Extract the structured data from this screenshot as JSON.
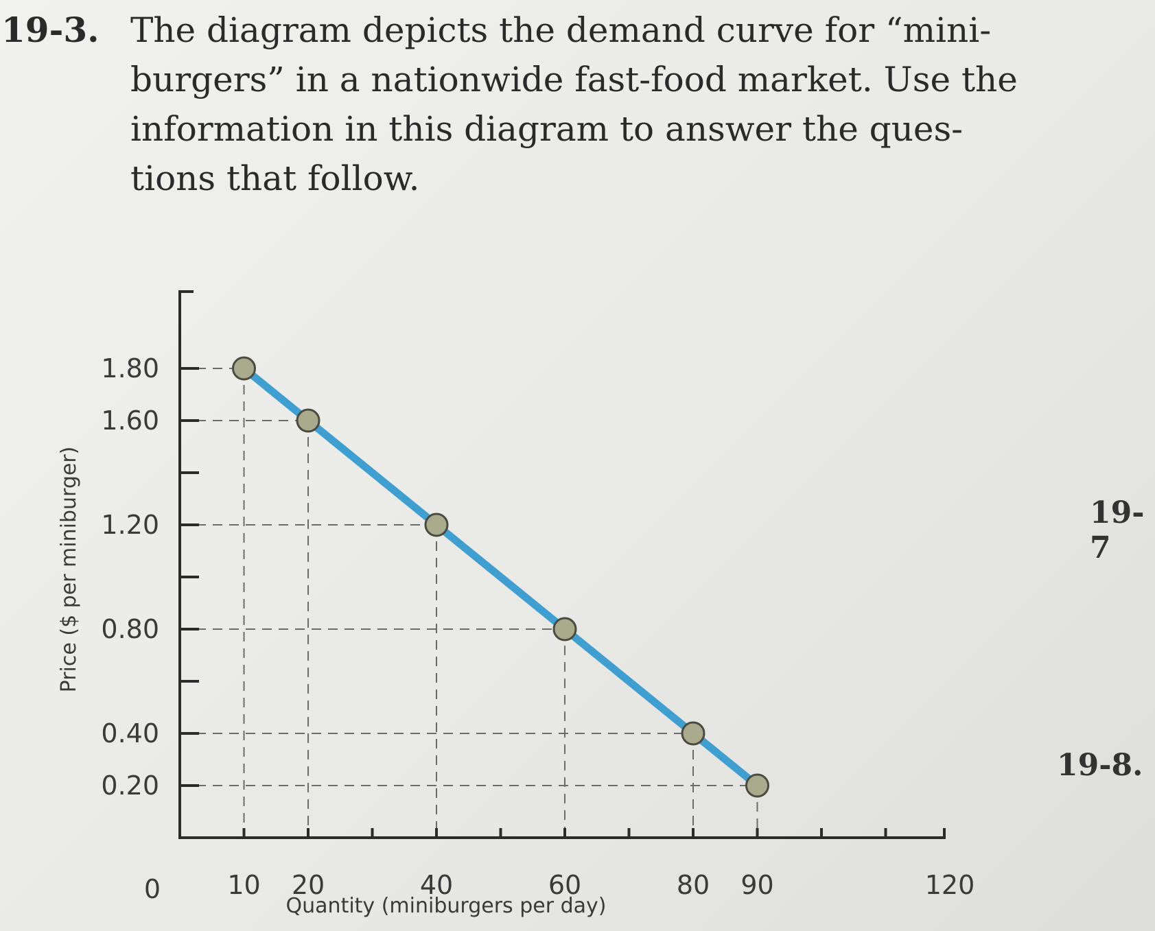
{
  "problem": {
    "number": "19-3.",
    "lines": [
      "The diagram depicts the demand curve for “mini-",
      "burgers” in a nationwide fast-food market. Use the",
      "information in this diagram to answer the ques-",
      "tions that follow."
    ]
  },
  "side_labels": [
    "19-7",
    "19-8."
  ],
  "chart_data": {
    "type": "line",
    "title": "",
    "xlabel": "Quantity (miniburgers per day)",
    "ylabel": "Price ($ per miniburger)",
    "origin_label": "0",
    "x_tick_labels": [
      "10",
      "20",
      "40",
      "60",
      "80",
      "90",
      "120"
    ],
    "y_tick_labels": [
      "0.20",
      "0.40",
      "0.80",
      "1.20",
      "1.60",
      "1.80"
    ],
    "xlim": [
      0,
      120
    ],
    "ylim": [
      0,
      2.0
    ],
    "series": [
      {
        "x": [
          10,
          20,
          40,
          60,
          80,
          90
        ],
        "y": [
          1.8,
          1.6,
          1.2,
          0.8,
          0.4,
          0.2
        ]
      }
    ],
    "line_color": "#3f9fd0",
    "marker_color": "#a9ab8c",
    "dashed_guides": true
  }
}
